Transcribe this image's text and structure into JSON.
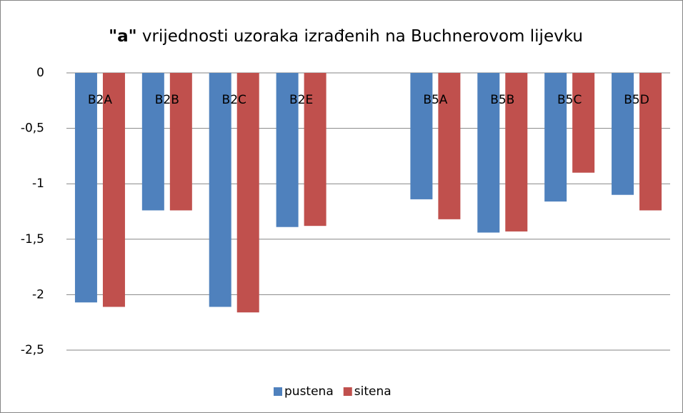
{
  "chart_data": {
    "type": "bar",
    "title": {
      "bold": "\"a\"",
      "text": "vrijednosti uzoraka izrađenih na Buchnerovom lijevku"
    },
    "categories": [
      "B2A",
      "B2B",
      "B2C",
      "B2E",
      null,
      "B5A",
      "B5B",
      "B5C",
      "B5D"
    ],
    "series": [
      {
        "name": "pustena",
        "color": "#4f81bd",
        "values": [
          -2.07,
          -1.24,
          -2.11,
          -1.39,
          null,
          -1.14,
          -1.44,
          -1.16,
          -1.1
        ]
      },
      {
        "name": "sitena",
        "color": "#c0504d",
        "values": [
          -2.11,
          -1.24,
          -2.16,
          -1.38,
          null,
          -1.32,
          -1.43,
          -0.9,
          -1.24
        ]
      }
    ],
    "ylim": [
      -2.5,
      0
    ],
    "yticks": [
      0,
      {
        "value": -0.5,
        "label": "-0,5"
      },
      -1,
      {
        "value": -1.5,
        "label": "-1,5"
      },
      -2,
      {
        "value": -2.5,
        "label": "-2,5"
      }
    ],
    "grid": true,
    "legend": "bottom"
  }
}
